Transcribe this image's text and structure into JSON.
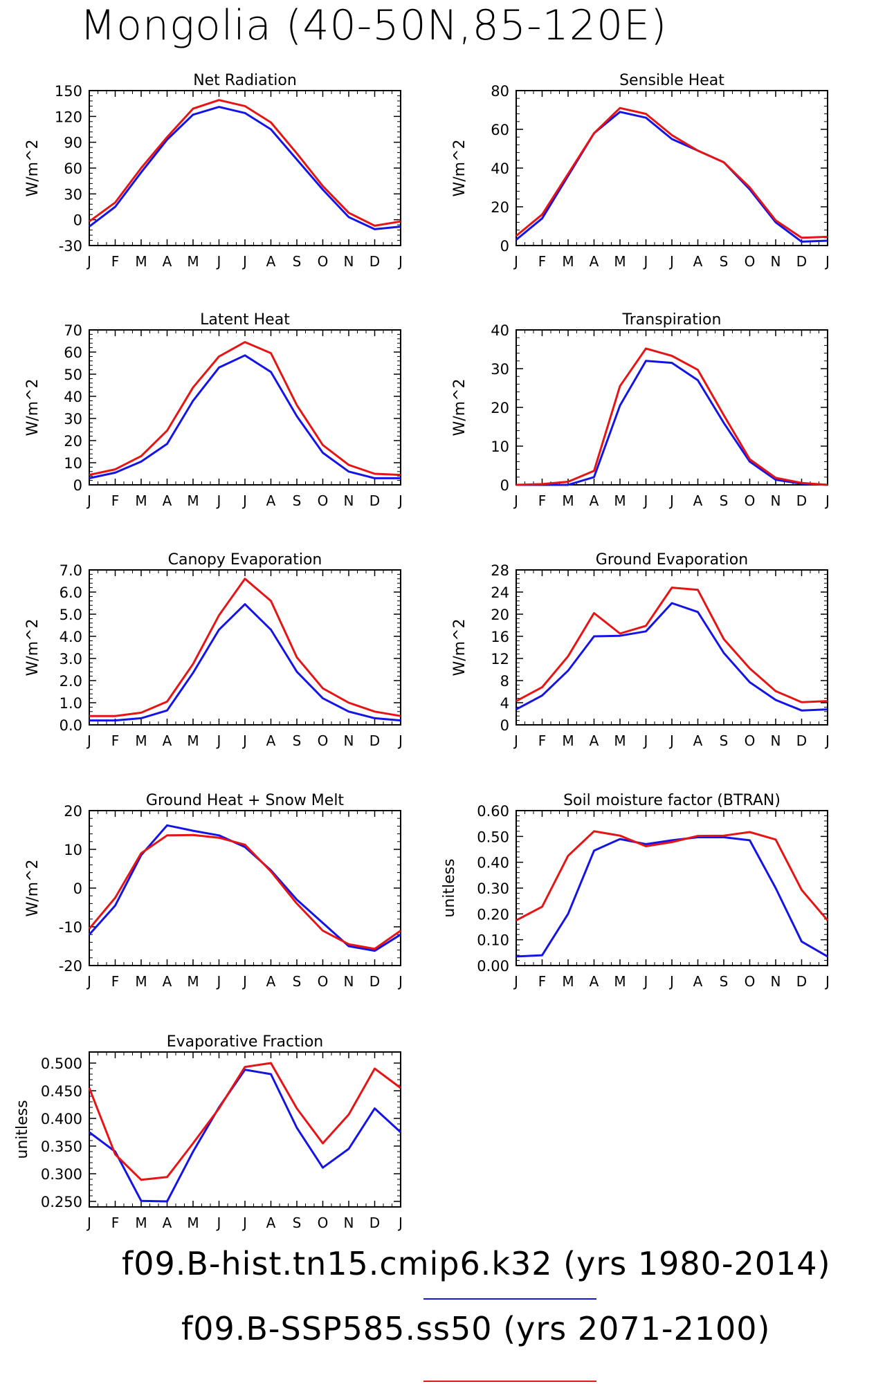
{
  "title": "Mongolia (40-50N,85-120E)",
  "colors": {
    "series1": "#1414e6",
    "series2": "#e61414"
  },
  "legend": [
    {
      "label": "f09.B-hist.tn15.cmip6.k32 (yrs 1980-2014)",
      "color": "#1414e6"
    },
    {
      "label": "f09.B-SSP585.ss50 (yrs 2071-2100)",
      "color": "#e61414"
    }
  ],
  "chart_data": [
    {
      "type": "line",
      "title": "Net Radiation",
      "ylabel": "W/m^2",
      "categories": [
        "J",
        "F",
        "M",
        "A",
        "M",
        "J",
        "J",
        "A",
        "S",
        "O",
        "N",
        "D",
        "J"
      ],
      "ylim": [
        -30,
        150
      ],
      "yticks": [
        -30,
        0,
        30,
        60,
        90,
        120,
        150
      ],
      "ytick_labels": [
        "-30",
        "0",
        "30",
        "60",
        "90",
        "120",
        "150"
      ],
      "series": [
        {
          "values": [
            -8,
            15,
            55,
            93,
            122,
            131,
            124,
            105,
            70,
            35,
            3,
            -11,
            -8
          ]
        },
        {
          "values": [
            -2,
            20,
            60,
            96,
            129,
            139,
            132,
            113,
            77,
            39,
            8,
            -7,
            -2
          ]
        }
      ]
    },
    {
      "type": "line",
      "title": "Sensible Heat",
      "ylabel": "W/m^2",
      "categories": [
        "J",
        "F",
        "M",
        "A",
        "M",
        "J",
        "J",
        "A",
        "S",
        "O",
        "N",
        "D",
        "J"
      ],
      "ylim": [
        0,
        80
      ],
      "yticks": [
        0,
        20,
        40,
        60,
        80
      ],
      "ytick_labels": [
        "0",
        "20",
        "40",
        "60",
        "80"
      ],
      "series": [
        {
          "values": [
            3,
            14,
            36,
            58,
            69,
            66,
            55,
            49,
            43,
            29,
            12,
            2,
            2.5
          ]
        },
        {
          "values": [
            5,
            16,
            37,
            58,
            71,
            68,
            57,
            49,
            43,
            30,
            13,
            4,
            4.5
          ]
        }
      ]
    },
    {
      "type": "line",
      "title": "Latent Heat",
      "ylabel": "W/m^2",
      "categories": [
        "J",
        "F",
        "M",
        "A",
        "M",
        "J",
        "J",
        "A",
        "S",
        "O",
        "N",
        "D",
        "J"
      ],
      "ylim": [
        0,
        70
      ],
      "yticks": [
        0,
        10,
        20,
        30,
        40,
        50,
        60,
        70
      ],
      "ytick_labels": [
        "0",
        "10",
        "20",
        "30",
        "40",
        "50",
        "60",
        "70"
      ],
      "series": [
        {
          "values": [
            3,
            5.5,
            10.5,
            18.5,
            38,
            53,
            58.5,
            51,
            31,
            14.5,
            6,
            3,
            3
          ]
        },
        {
          "values": [
            4.5,
            7,
            13,
            24.5,
            44,
            58,
            64.5,
            59.5,
            36,
            18,
            9,
            5,
            4.5
          ]
        }
      ]
    },
    {
      "type": "line",
      "title": "Transpiration",
      "ylabel": "W/m^2",
      "categories": [
        "J",
        "F",
        "M",
        "A",
        "M",
        "J",
        "J",
        "A",
        "S",
        "O",
        "N",
        "D",
        "J"
      ],
      "ylim": [
        0,
        40
      ],
      "yticks": [
        0,
        10,
        20,
        30,
        40
      ],
      "ytick_labels": [
        "0",
        "10",
        "20",
        "30",
        "40"
      ],
      "series": [
        {
          "values": [
            0,
            0,
            0,
            2,
            20.5,
            32,
            31.5,
            27,
            16,
            6,
            1.3,
            0.3,
            0
          ]
        },
        {
          "values": [
            0,
            0.2,
            0.8,
            3.6,
            25.5,
            35.2,
            33.3,
            29.7,
            18,
            6.6,
            1.8,
            0.5,
            0
          ]
        }
      ]
    },
    {
      "type": "line",
      "title": "Canopy Evaporation",
      "ylabel": "W/m^2",
      "categories": [
        "J",
        "F",
        "M",
        "A",
        "M",
        "J",
        "J",
        "A",
        "S",
        "O",
        "N",
        "D",
        "J"
      ],
      "ylim": [
        0,
        7
      ],
      "yticks": [
        0,
        1,
        2,
        3,
        4,
        5,
        6,
        7
      ],
      "ytick_labels": [
        "0.0",
        "1.0",
        "2.0",
        "3.0",
        "4.0",
        "5.0",
        "6.0",
        "7.0"
      ],
      "series": [
        {
          "values": [
            0.2,
            0.2,
            0.3,
            0.65,
            2.35,
            4.3,
            5.45,
            4.3,
            2.4,
            1.2,
            0.6,
            0.3,
            0.2
          ]
        },
        {
          "values": [
            0.4,
            0.4,
            0.55,
            1.05,
            2.75,
            4.95,
            6.6,
            5.6,
            3.05,
            1.65,
            1.0,
            0.6,
            0.4
          ]
        }
      ]
    },
    {
      "type": "line",
      "title": "Ground Evaporation",
      "ylabel": "W/m^2",
      "categories": [
        "J",
        "F",
        "M",
        "A",
        "M",
        "J",
        "J",
        "A",
        "S",
        "O",
        "N",
        "D",
        "J"
      ],
      "ylim": [
        0,
        28
      ],
      "yticks": [
        0,
        4,
        8,
        12,
        16,
        20,
        24,
        28
      ],
      "ytick_labels": [
        "0",
        "4",
        "8",
        "12",
        "16",
        "20",
        "24",
        "28"
      ],
      "series": [
        {
          "values": [
            2.8,
            5.3,
            9.8,
            16,
            16.1,
            16.9,
            22,
            20.4,
            13,
            7.7,
            4.5,
            2.6,
            2.8
          ]
        },
        {
          "values": [
            4.3,
            6.8,
            12.4,
            20.2,
            16.5,
            17.9,
            24.8,
            24.4,
            15.5,
            10.2,
            6.1,
            4.1,
            4.3
          ]
        }
      ]
    },
    {
      "type": "line",
      "title": "Ground Heat + Snow Melt",
      "ylabel": "W/m^2",
      "categories": [
        "J",
        "F",
        "M",
        "A",
        "M",
        "J",
        "J",
        "A",
        "S",
        "O",
        "N",
        "D",
        "J"
      ],
      "ylim": [
        -20,
        20
      ],
      "yticks": [
        -20,
        -10,
        0,
        10,
        20
      ],
      "ytick_labels": [
        "-20",
        "-10",
        "0",
        "10",
        "20"
      ],
      "series": [
        {
          "values": [
            -12,
            -4.5,
            8.5,
            16.2,
            14.8,
            13.6,
            10.6,
            4.6,
            -3,
            -9,
            -15,
            -16.2,
            -12
          ]
        },
        {
          "values": [
            -10.5,
            -2.5,
            9,
            13.6,
            13.7,
            13,
            11.2,
            4.3,
            -4,
            -11,
            -14.5,
            -15.7,
            -11
          ]
        }
      ]
    },
    {
      "type": "line",
      "title": "Soil moisture factor (BTRAN)",
      "ylabel": "unitless",
      "categories": [
        "J",
        "F",
        "M",
        "A",
        "M",
        "J",
        "J",
        "A",
        "S",
        "O",
        "N",
        "D",
        "J"
      ],
      "ylim": [
        0,
        0.6
      ],
      "yticks": [
        0,
        0.1,
        0.2,
        0.3,
        0.4,
        0.5,
        0.6
      ],
      "ytick_labels": [
        "0.00",
        "0.10",
        "0.20",
        "0.30",
        "0.40",
        "0.50",
        "0.60"
      ],
      "series": [
        {
          "values": [
            0.035,
            0.04,
            0.2,
            0.445,
            0.49,
            0.47,
            0.485,
            0.497,
            0.497,
            0.485,
            0.3,
            0.093,
            0.035
          ]
        },
        {
          "values": [
            0.175,
            0.228,
            0.425,
            0.52,
            0.503,
            0.462,
            0.478,
            0.502,
            0.503,
            0.517,
            0.488,
            0.293,
            0.175
          ]
        }
      ]
    },
    {
      "type": "line",
      "title": "Evaporative Fraction",
      "ylabel": "unitless",
      "categories": [
        "J",
        "F",
        "M",
        "A",
        "M",
        "J",
        "J",
        "A",
        "S",
        "O",
        "N",
        "D",
        "J"
      ],
      "ylim": [
        0.24,
        0.52
      ],
      "yticks": [
        0.25,
        0.3,
        0.35,
        0.4,
        0.45,
        0.5
      ],
      "ytick_labels": [
        "0.250",
        "0.300",
        "0.350",
        "0.400",
        "0.450",
        "0.500"
      ],
      "series": [
        {
          "values": [
            0.375,
            0.34,
            0.251,
            0.25,
            0.34,
            0.42,
            0.488,
            0.48,
            0.383,
            0.311,
            0.345,
            0.418,
            0.375
          ]
        },
        {
          "values": [
            0.455,
            0.335,
            0.289,
            0.294,
            0.355,
            0.418,
            0.493,
            0.5,
            0.418,
            0.355,
            0.407,
            0.49,
            0.455
          ]
        }
      ]
    }
  ]
}
